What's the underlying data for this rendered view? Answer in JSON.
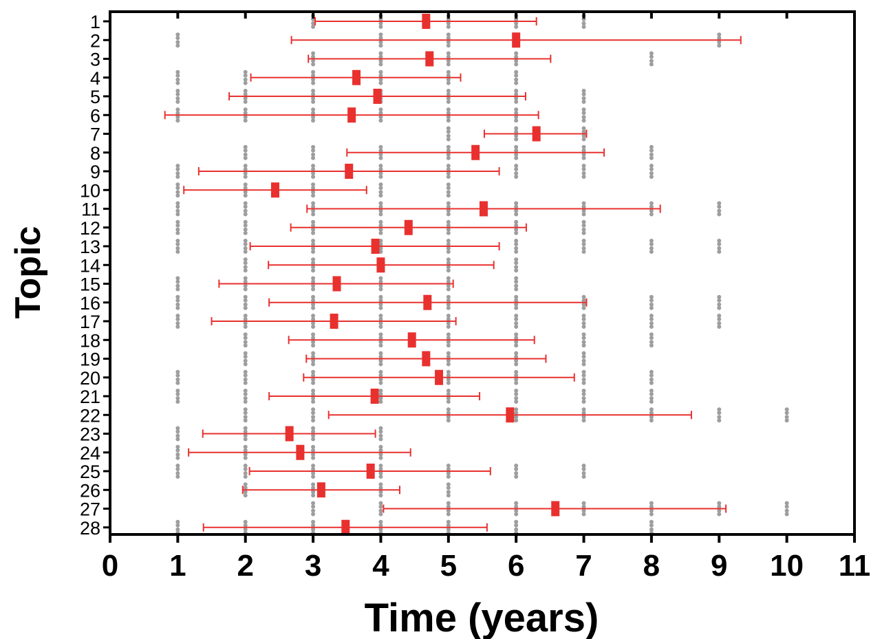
{
  "chart_data": {
    "type": "scatter",
    "title": "",
    "xlabel": "Time (years)",
    "ylabel": "Topic",
    "xlim": [
      0,
      11
    ],
    "xticks": [
      "0",
      "1",
      "2",
      "3",
      "4",
      "5",
      "6",
      "7",
      "8",
      "9",
      "10",
      "11"
    ],
    "topics": [
      "1",
      "2",
      "3",
      "4",
      "5",
      "6",
      "7",
      "8",
      "9",
      "10",
      "11",
      "12",
      "13",
      "14",
      "15",
      "16",
      "17",
      "18",
      "19",
      "20",
      "21",
      "22",
      "23",
      "24",
      "25",
      "26",
      "27",
      "28"
    ],
    "grid": false,
    "legend": "none",
    "colors": {
      "mean": "#e8312f",
      "error_bar": "#e8312f",
      "points": "#9e9e9e",
      "axis": "#000000"
    },
    "series": [
      {
        "values": [
          {
            "topic": "1",
            "mean": 4.67,
            "lower": 3.03,
            "upper": 6.3
          },
          {
            "topic": "2",
            "mean": 6.0,
            "lower": 2.68,
            "upper": 9.32
          },
          {
            "topic": "3",
            "mean": 4.72,
            "lower": 2.93,
            "upper": 6.51
          },
          {
            "topic": "4",
            "mean": 3.64,
            "lower": 2.08,
            "upper": 5.18
          },
          {
            "topic": "5",
            "mean": 3.95,
            "lower": 1.76,
            "upper": 6.14
          },
          {
            "topic": "6",
            "mean": 3.57,
            "lower": 0.81,
            "upper": 6.33
          },
          {
            "topic": "7",
            "mean": 6.3,
            "lower": 5.53,
            "upper": 7.04
          },
          {
            "topic": "8",
            "mean": 5.4,
            "lower": 3.5,
            "upper": 7.3
          },
          {
            "topic": "9",
            "mean": 3.53,
            "lower": 1.31,
            "upper": 5.75
          },
          {
            "topic": "10",
            "mean": 2.44,
            "lower": 1.09,
            "upper": 3.79
          },
          {
            "topic": "11",
            "mean": 5.52,
            "lower": 2.91,
            "upper": 8.13
          },
          {
            "topic": "12",
            "mean": 4.41,
            "lower": 2.67,
            "upper": 6.15
          },
          {
            "topic": "13",
            "mean": 3.92,
            "lower": 2.07,
            "upper": 5.75
          },
          {
            "topic": "14",
            "mean": 4.0,
            "lower": 2.34,
            "upper": 5.67
          },
          {
            "topic": "15",
            "mean": 3.35,
            "lower": 1.61,
            "upper": 5.07
          },
          {
            "topic": "16",
            "mean": 4.69,
            "lower": 2.35,
            "upper": 7.04
          },
          {
            "topic": "17",
            "mean": 3.31,
            "lower": 1.5,
            "upper": 5.11
          },
          {
            "topic": "18",
            "mean": 4.46,
            "lower": 2.64,
            "upper": 6.27
          },
          {
            "topic": "19",
            "mean": 4.67,
            "lower": 2.9,
            "upper": 6.44
          },
          {
            "topic": "20",
            "mean": 4.86,
            "lower": 2.86,
            "upper": 6.86
          },
          {
            "topic": "21",
            "mean": 3.91,
            "lower": 2.35,
            "upper": 5.46
          },
          {
            "topic": "22",
            "mean": 5.91,
            "lower": 3.23,
            "upper": 8.59
          },
          {
            "topic": "23",
            "mean": 2.65,
            "lower": 1.37,
            "upper": 3.92
          },
          {
            "topic": "24",
            "mean": 2.81,
            "lower": 1.16,
            "upper": 4.44
          },
          {
            "topic": "25",
            "mean": 3.85,
            "lower": 2.06,
            "upper": 5.62
          },
          {
            "topic": "26",
            "mean": 3.12,
            "lower": 1.96,
            "upper": 4.28
          },
          {
            "topic": "27",
            "mean": 6.58,
            "lower": 4.04,
            "upper": 9.1
          },
          {
            "topic": "28",
            "mean": 3.48,
            "lower": 1.38,
            "upper": 5.57
          }
        ]
      },
      {
        "values": [
          {
            "topic": "1",
            "times": [
              3,
              4,
              5,
              6,
              7
            ]
          },
          {
            "topic": "2",
            "times": [
              1,
              4,
              5,
              6,
              9
            ]
          },
          {
            "topic": "3",
            "times": [
              3,
              4,
              5,
              6,
              8
            ]
          },
          {
            "topic": "4",
            "times": [
              1,
              2,
              3,
              4,
              5,
              6
            ]
          },
          {
            "topic": "5",
            "times": [
              1,
              2,
              3,
              4,
              5,
              6,
              7
            ]
          },
          {
            "topic": "6",
            "times": [
              1,
              2,
              3,
              4,
              5,
              6,
              7
            ]
          },
          {
            "topic": "7",
            "times": [
              5,
              6,
              7
            ]
          },
          {
            "topic": "8",
            "times": [
              2,
              3,
              4,
              5,
              6,
              7,
              8
            ]
          },
          {
            "topic": "9",
            "times": [
              1,
              2,
              3,
              4,
              5,
              6,
              7,
              8
            ]
          },
          {
            "topic": "10",
            "times": [
              1,
              2,
              3,
              4,
              5
            ]
          },
          {
            "topic": "11",
            "times": [
              1,
              2,
              3,
              4,
              5,
              6,
              7,
              8,
              9
            ]
          },
          {
            "topic": "12",
            "times": [
              1,
              2,
              3,
              4,
              5,
              6,
              7
            ]
          },
          {
            "topic": "13",
            "times": [
              1,
              2,
              3,
              4,
              5,
              6,
              7,
              8,
              9
            ]
          },
          {
            "topic": "14",
            "times": [
              2,
              3,
              4,
              5,
              6
            ]
          },
          {
            "topic": "15",
            "times": [
              1,
              2,
              3,
              4,
              5,
              6
            ]
          },
          {
            "topic": "16",
            "times": [
              1,
              2,
              3,
              4,
              5,
              6,
              7,
              8,
              9
            ]
          },
          {
            "topic": "17",
            "times": [
              1,
              2,
              3,
              4,
              5,
              6,
              7,
              8,
              9
            ]
          },
          {
            "topic": "18",
            "times": [
              2,
              3,
              4,
              5,
              6,
              7,
              8
            ]
          },
          {
            "topic": "19",
            "times": [
              2,
              3,
              4,
              5,
              6,
              7
            ]
          },
          {
            "topic": "20",
            "times": [
              1,
              2,
              3,
              4,
              5,
              6,
              7,
              8
            ]
          },
          {
            "topic": "21",
            "times": [
              1,
              2,
              3,
              4,
              5,
              6,
              7,
              8
            ]
          },
          {
            "topic": "22",
            "times": [
              2,
              3,
              5,
              6,
              7,
              8,
              9,
              10
            ]
          },
          {
            "topic": "23",
            "times": [
              1,
              2,
              3,
              4
            ]
          },
          {
            "topic": "24",
            "times": [
              1,
              2,
              3,
              4
            ]
          },
          {
            "topic": "25",
            "times": [
              1,
              2,
              3,
              4,
              5,
              6,
              7
            ]
          },
          {
            "topic": "26",
            "times": [
              2,
              3,
              4,
              5
            ]
          },
          {
            "topic": "27",
            "times": [
              3,
              4,
              5,
              6,
              7,
              8,
              9,
              10
            ]
          },
          {
            "topic": "28",
            "times": [
              1,
              2,
              3,
              4,
              5,
              6,
              8
            ]
          }
        ]
      }
    ]
  }
}
